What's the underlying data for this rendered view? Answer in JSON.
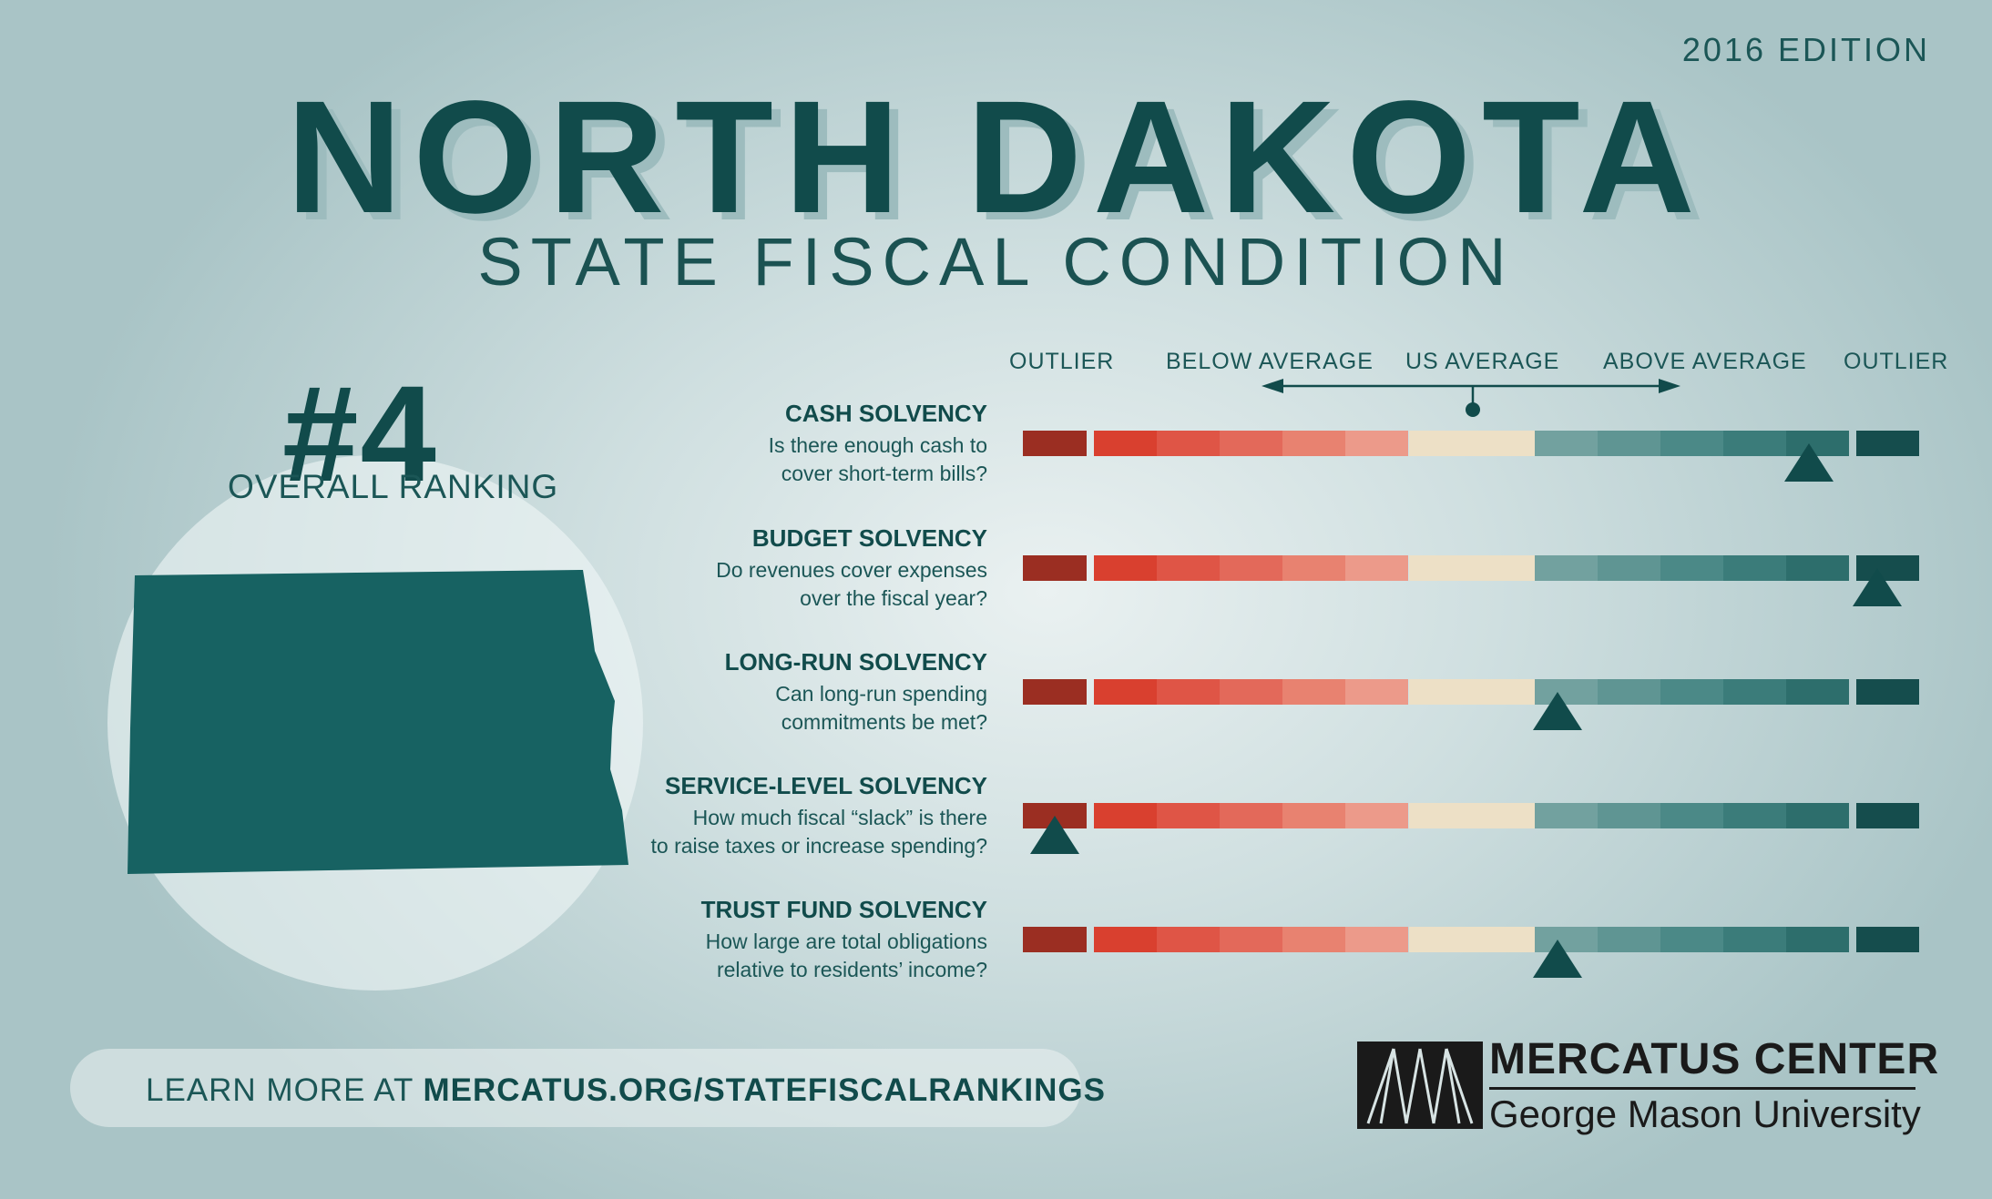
{
  "edition": "2016 EDITION",
  "title": "NORTH DAKOTA",
  "subtitle": "STATE FISCAL CONDITION",
  "ranking": {
    "number": "#4",
    "label": "OVERALL RANKING"
  },
  "scale_labels": [
    "OUTLIER",
    "BELOW AVERAGE",
    "US AVERAGE",
    "ABOVE AVERAGE",
    "OUTLIER"
  ],
  "segment_colors": [
    "#9b2e22",
    "#d9402f",
    "#df5546",
    "#e3695a",
    "#e88270",
    "#ec9a8a",
    "#ede0c6",
    "#ede0c6",
    "#72a19f",
    "#5f9593",
    "#4b8987",
    "#3b7c7a",
    "#2d6e6c",
    "#1f615f",
    "#154d4d"
  ],
  "metrics": [
    {
      "title": "CASH SOLVENCY",
      "desc": [
        "Is there enough cash to",
        "cover short-term bills?"
      ],
      "score": 12.5
    },
    {
      "title": "BUDGET SOLVENCY",
      "desc": [
        "Do revenues cover expenses",
        "over the fiscal year?"
      ],
      "score": 13.6
    },
    {
      "title": "LONG-RUN SOLVENCY",
      "desc": [
        "Can long-run spending",
        "commitments be met?"
      ],
      "score": 8.5
    },
    {
      "title": "SERVICE-LEVEL SOLVENCY",
      "desc": [
        "How much fiscal “slack” is there",
        "to raise taxes or increase spending?"
      ],
      "score": 0.5
    },
    {
      "title": "TRUST FUND SOLVENCY",
      "desc": [
        "How large are total obligations",
        "relative to residents’ income?"
      ],
      "score": 8.5
    }
  ],
  "footer": {
    "prefix": "LEARN MORE AT ",
    "url": "MERCATUS.ORG/STATEFISCALRANKINGS"
  },
  "org": {
    "name": "MERCATUS CENTER",
    "university": "George Mason University"
  }
}
